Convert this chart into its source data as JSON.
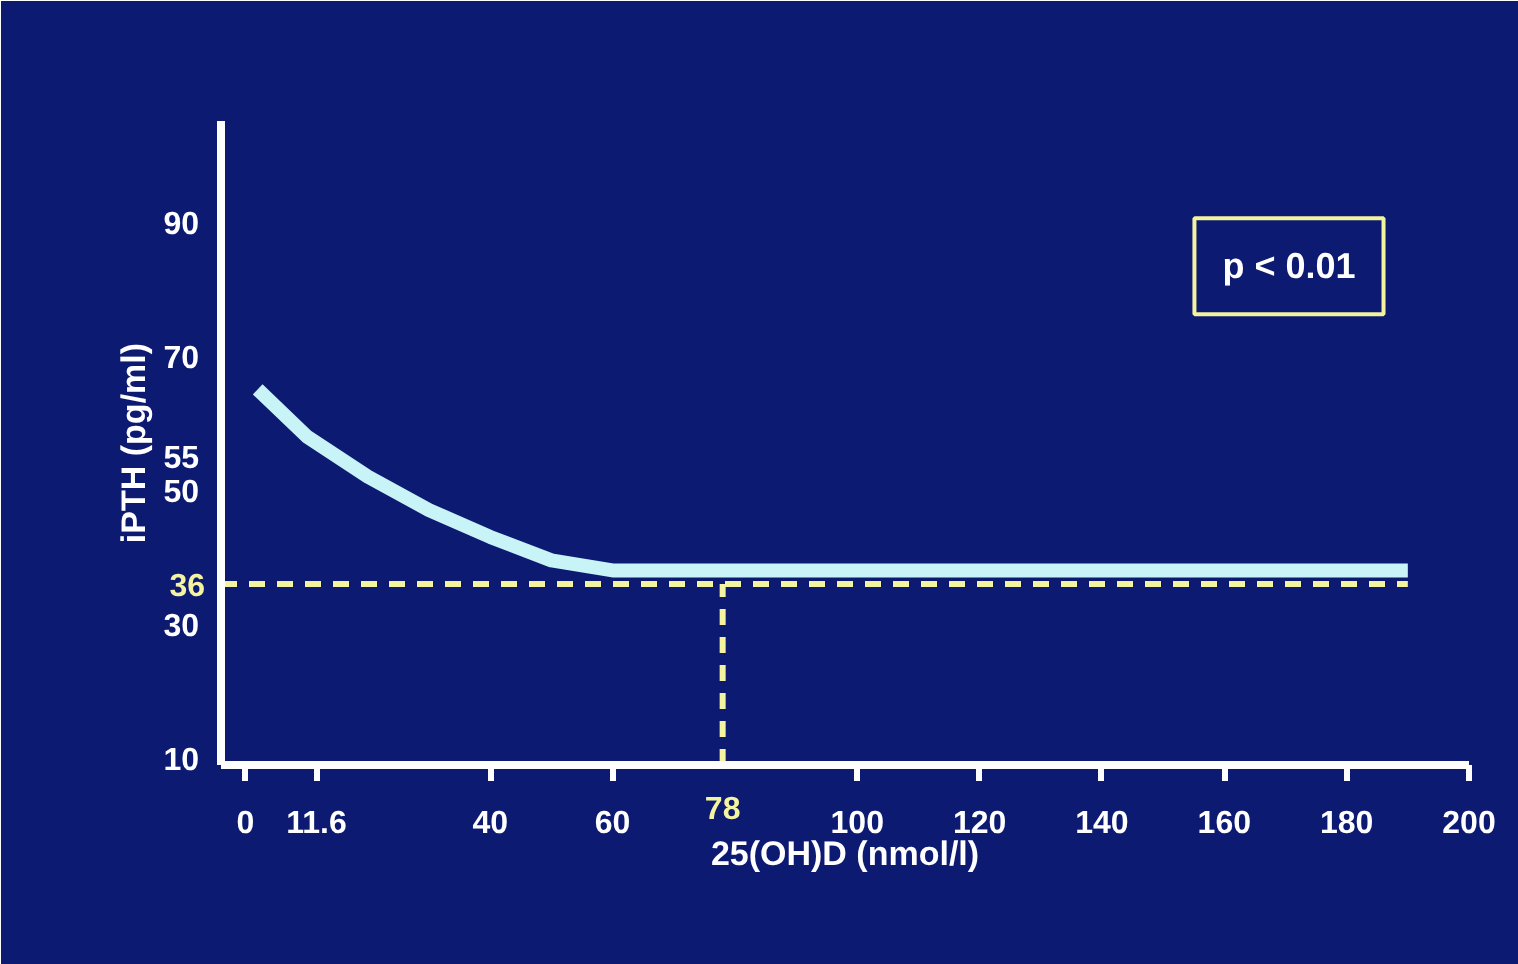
{
  "chart_data": {
    "type": "line",
    "xlabel": "25(OH)D (nmol/l)",
    "ylabel": "iPTH (pg/ml)",
    "x": [
      2,
      10,
      20,
      30,
      40,
      50,
      60,
      70,
      78,
      190
    ],
    "series": [
      {
        "color": "#c8f4f8",
        "values": [
          65,
          58,
          52,
          47,
          43,
          39.5,
          38,
          38,
          38,
          38
        ]
      }
    ],
    "xlim": [
      -4,
      200
    ],
    "ylim": [
      9,
      105
    ],
    "xticks": [
      0,
      11.6,
      40,
      60,
      100,
      120,
      140,
      160,
      180,
      200
    ],
    "yticks": [
      10,
      30,
      50,
      55,
      70,
      90
    ],
    "ref_lines": [
      {
        "axis": "y",
        "value": 36,
        "label": "36",
        "color": "#f4f4a0",
        "line_style": "dashed"
      },
      {
        "axis": "x",
        "value": 78,
        "label": "78",
        "color": "#f4f4a0",
        "line_style": "dashed"
      }
    ],
    "annotations": [
      "p < 0.01"
    ],
    "grid": false,
    "marker": "none",
    "line_style": "solid"
  }
}
